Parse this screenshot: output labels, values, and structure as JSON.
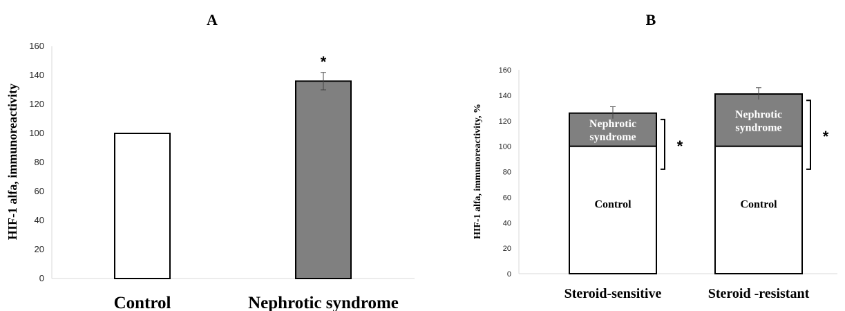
{
  "chart_data": [
    {
      "type": "bar",
      "panel_label": "A",
      "categories": [
        "Control",
        "Nephrotic syndrome"
      ],
      "values": [
        100,
        136
      ],
      "error": [
        0,
        6
      ],
      "colors": [
        "#ffffff",
        "#808080"
      ],
      "significance": [
        "",
        "*"
      ],
      "ylabel": "HIF-1 alfa, immunoreactivity",
      "ylim": [
        0,
        160
      ],
      "yticks": [
        0,
        20,
        40,
        60,
        80,
        100,
        120,
        140,
        160
      ],
      "grid": false
    },
    {
      "type": "bar",
      "stacked": true,
      "panel_label": "B",
      "categories": [
        "Steroid-sensitive",
        "Steroid -resistant"
      ],
      "series": [
        {
          "label": "Control",
          "values": [
            100,
            100
          ],
          "color": "#ffffff"
        },
        {
          "label": "Nephrotic syndrome",
          "values": [
            26,
            41
          ],
          "color": "#808080"
        }
      ],
      "totals": [
        126,
        141
      ],
      "error": [
        5,
        5
      ],
      "significance": "*",
      "ylabel": "HIF-1 alfa, immunoreactivity, %",
      "ylim": [
        0,
        160
      ],
      "yticks": [
        0,
        20,
        40,
        60,
        80,
        100,
        120,
        140,
        160
      ],
      "grid": false
    }
  ]
}
